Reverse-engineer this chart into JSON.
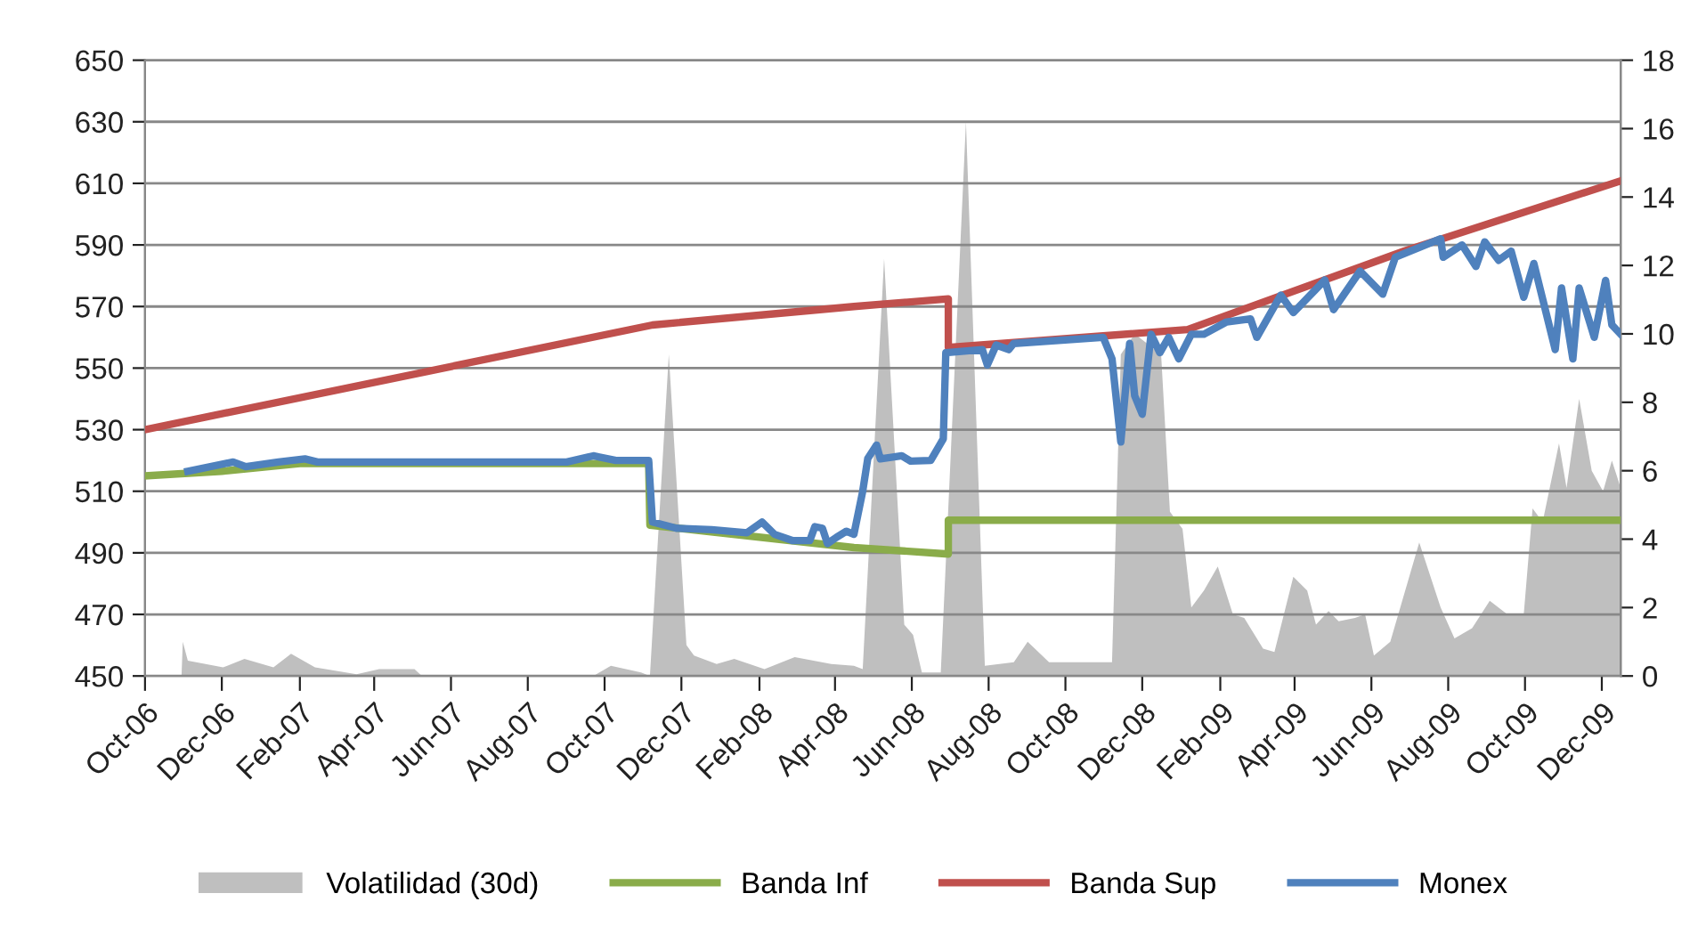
{
  "chart_data": {
    "type": "line",
    "xlim": [
      "2006-10-01",
      "2009-12-16"
    ],
    "xticks": [
      {
        "value": "2006-10-01",
        "label": "Oct-06"
      },
      {
        "value": "2006-12-01",
        "label": "Dec-06"
      },
      {
        "value": "2007-02-01",
        "label": "Feb-07"
      },
      {
        "value": "2007-04-01",
        "label": "Apr-07"
      },
      {
        "value": "2007-06-01",
        "label": "Jun-07"
      },
      {
        "value": "2007-08-01",
        "label": "Aug-07"
      },
      {
        "value": "2007-10-01",
        "label": "Oct-07"
      },
      {
        "value": "2007-12-01",
        "label": "Dec-07"
      },
      {
        "value": "2008-02-01",
        "label": "Feb-08"
      },
      {
        "value": "2008-04-01",
        "label": "Apr-08"
      },
      {
        "value": "2008-06-01",
        "label": "Jun-08"
      },
      {
        "value": "2008-08-01",
        "label": "Aug-08"
      },
      {
        "value": "2008-10-01",
        "label": "Oct-08"
      },
      {
        "value": "2008-12-01",
        "label": "Dec-08"
      },
      {
        "value": "2009-02-01",
        "label": "Feb-09"
      },
      {
        "value": "2009-04-01",
        "label": "Apr-09"
      },
      {
        "value": "2009-06-01",
        "label": "Jun-09"
      },
      {
        "value": "2009-08-01",
        "label": "Aug-09"
      },
      {
        "value": "2009-10-01",
        "label": "Oct-09"
      },
      {
        "value": "2009-12-01",
        "label": "Dec-09"
      }
    ],
    "ylim": [
      450,
      650
    ],
    "yticks": [
      450,
      470,
      490,
      510,
      530,
      550,
      570,
      590,
      610,
      630,
      650
    ],
    "y2lim": [
      0,
      18
    ],
    "y2ticks": [
      0,
      2,
      4,
      6,
      8,
      10,
      12,
      14,
      16,
      18
    ],
    "grid": "y",
    "legend": "bottom",
    "marker": "none",
    "line_style": "solid",
    "series": [
      {
        "name": "Volatilidad (30d)",
        "type": "area",
        "axis": "y2",
        "color": "#bfbfbf",
        "x": [
          "2006-10-30",
          "2006-10-31",
          "2006-11-04",
          "2006-12-02",
          "2006-12-19",
          "2007-01-11",
          "2007-01-25",
          "2007-02-13",
          "2007-03-18",
          "2007-04-05",
          "2007-05-03",
          "2007-05-09",
          "2007-09-22",
          "2007-10-06",
          "2007-10-30",
          "2007-11-06",
          "2007-11-21",
          "2007-12-05",
          "2007-12-11",
          "2007-12-29",
          "2008-01-12",
          "2008-02-05",
          "2008-02-29",
          "2008-03-29",
          "2008-04-16",
          "2008-04-23",
          "2008-05-10",
          "2008-05-26",
          "2008-06-02",
          "2008-06-09",
          "2008-06-24",
          "2008-07-14",
          "2008-07-29",
          "2008-08-21",
          "2008-09-01",
          "2008-09-18",
          "2008-11-07",
          "2008-11-14",
          "2008-11-25",
          "2008-12-16",
          "2008-12-23",
          "2009-01-02",
          "2009-01-09",
          "2009-01-19",
          "2009-01-30",
          "2009-02-11",
          "2009-02-20",
          "2009-03-07",
          "2009-03-16",
          "2009-03-31",
          "2009-04-11",
          "2009-04-18",
          "2009-04-28",
          "2009-05-06",
          "2009-05-19",
          "2009-05-27",
          "2009-06-03",
          "2009-06-16",
          "2009-07-09",
          "2009-07-26",
          "2009-08-06",
          "2009-08-20",
          "2009-09-03",
          "2009-09-17",
          "2009-09-30",
          "2009-10-07",
          "2009-10-15",
          "2009-10-28",
          "2009-11-03",
          "2009-11-13",
          "2009-11-23",
          "2009-12-02",
          "2009-12-09",
          "2009-12-16"
        ],
        "values": [
          0,
          1.0,
          0.45,
          0.25,
          0.5,
          0.25,
          0.65,
          0.25,
          0.05,
          0.2,
          0.2,
          0,
          0,
          0.3,
          0.1,
          0,
          9.4,
          0.9,
          0.6,
          0.35,
          0.5,
          0.2,
          0.55,
          0.35,
          0.3,
          0.2,
          12.2,
          1.5,
          1.2,
          0.1,
          0.1,
          16.2,
          0.3,
          0.4,
          1.0,
          0.4,
          0.4,
          9.4,
          10.0,
          9.4,
          4.8,
          4.3,
          2.0,
          2.5,
          3.2,
          1.8,
          1.7,
          0.8,
          0.7,
          2.9,
          2.5,
          1.5,
          1.9,
          1.6,
          1.7,
          1.8,
          0.6,
          1.0,
          3.9,
          2.0,
          1.1,
          1.4,
          2.2,
          1.8,
          1.8,
          4.9,
          4.5,
          6.8,
          5.5,
          8.1,
          6.0,
          5.4,
          6.3,
          5.5
        ]
      },
      {
        "name": "Banda Inf",
        "color": "#8aac4a",
        "x": [
          "2006-10-01",
          "2006-12-01",
          "2007-02-01",
          "2007-11-05",
          "2007-11-06",
          "2008-04-16",
          "2008-06-30",
          "2008-06-30",
          "2009-12-16"
        ],
        "values": [
          515,
          516.5,
          519,
          519,
          499,
          491.7,
          489.6,
          500.6,
          500.6
        ]
      },
      {
        "name": "Banda Sup",
        "color": "#c0504d",
        "x": [
          "2006-10-01",
          "2007-11-08",
          "2008-04-16",
          "2008-06-30",
          "2008-06-30",
          "2009-01-06",
          "2009-06-27",
          "2009-12-16"
        ],
        "values": [
          530,
          564,
          570,
          572.5,
          556.7,
          562.5,
          588,
          610.8
        ]
      },
      {
        "name": "Monex",
        "color": "#4f81bd",
        "x": [
          "2006-11-04",
          "2006-12-10",
          "2006-12-20",
          "2007-01-15",
          "2007-02-05",
          "2007-02-15",
          "2007-09-01",
          "2007-09-22",
          "2007-10-10",
          "2007-11-05",
          "2007-11-08",
          "2007-11-27",
          "2007-12-25",
          "2008-01-22",
          "2008-02-03",
          "2008-02-13",
          "2008-02-27",
          "2008-03-12",
          "2008-03-16",
          "2008-03-22",
          "2008-03-26",
          "2008-04-02",
          "2008-04-10",
          "2008-04-16",
          "2008-04-23",
          "2008-04-27",
          "2008-05-04",
          "2008-05-07",
          "2008-05-24",
          "2008-05-31",
          "2008-06-16",
          "2008-06-26",
          "2008-06-28",
          "2008-07-27",
          "2008-07-31",
          "2008-08-07",
          "2008-08-17",
          "2008-08-21",
          "2008-10-31",
          "2008-11-07",
          "2008-11-14",
          "2008-11-21",
          "2008-11-25",
          "2008-12-01",
          "2008-12-08",
          "2008-12-15",
          "2008-12-22",
          "2008-12-30",
          "2009-01-09",
          "2009-01-19",
          "2009-02-06",
          "2009-02-25",
          "2009-03-02",
          "2009-03-21",
          "2009-03-31",
          "2009-04-25",
          "2009-05-02",
          "2009-05-23",
          "2009-06-10",
          "2009-06-20",
          "2009-07-26",
          "2009-07-28",
          "2009-08-12",
          "2009-08-23",
          "2009-08-30",
          "2009-09-10",
          "2009-09-20",
          "2009-09-30",
          "2009-10-08",
          "2009-10-25",
          "2009-10-30",
          "2009-11-08",
          "2009-11-13",
          "2009-11-25",
          "2009-12-04",
          "2009-12-09",
          "2009-12-16"
        ],
        "values": [
          516.5,
          519.5,
          518,
          519.5,
          520.5,
          519.5,
          519.5,
          521.5,
          520,
          520,
          500,
          498,
          497.5,
          496.5,
          500,
          496,
          494,
          494,
          498.5,
          498,
          493,
          495,
          497,
          496,
          510,
          520.6,
          525,
          520.5,
          521.5,
          519.8,
          520,
          527,
          555,
          556,
          551,
          557.5,
          556,
          558,
          560,
          553,
          526,
          558,
          541,
          535,
          561,
          555,
          560,
          553,
          561,
          561,
          565,
          566,
          560,
          573.7,
          568,
          578.6,
          569,
          581.5,
          574,
          586,
          592,
          586,
          590,
          583,
          591,
          585,
          588,
          573,
          584,
          556,
          576,
          553,
          576,
          560,
          578.5,
          564,
          561
        ]
      }
    ]
  }
}
